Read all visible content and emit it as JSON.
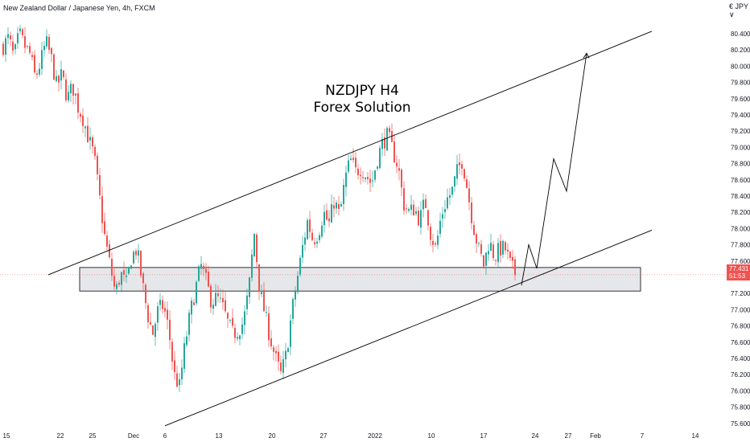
{
  "header": {
    "instrument": "New Zealand Dollar / Japanese Yen, 4h, FXCM",
    "currency_label": "€ JPY ∨"
  },
  "colors": {
    "up": "#26a69a",
    "down": "#ef5350",
    "trendline": "#000000",
    "zone_fill": "#e6e7ea",
    "zone_border": "#000000"
  },
  "price_badge": {
    "price": "77.431",
    "countdown": "51:53"
  },
  "chart_data": {
    "type": "candlestick",
    "annotations": [
      "NZDJPY H4",
      "Forex Solution"
    ],
    "y_ticks": [
      "80.400",
      "80.200",
      "80.000",
      "79.800",
      "79.600",
      "79.400",
      "79.200",
      "79.000",
      "78.800",
      "78.600",
      "78.400",
      "78.200",
      "78.000",
      "77.800",
      "77.600",
      "77.200",
      "77.000",
      "76.800",
      "76.600",
      "76.400",
      "76.200",
      "76.000",
      "75.800",
      "75.600"
    ],
    "x_ticks": [
      "15",
      "22",
      "25",
      "Dec",
      "6",
      "13",
      "20",
      "27",
      "2022",
      "10",
      "17",
      "24",
      "27",
      "Feb",
      "7",
      "14"
    ],
    "ylim": [
      75.5,
      80.6
    ],
    "current_price": 77.431,
    "support_zone": [
      77.23,
      77.52
    ],
    "channel_upper": [
      {
        "x": "Nov 24",
        "y": 77.43
      },
      {
        "x": "Feb 3",
        "y": 80.43
      }
    ],
    "channel_lower": [
      {
        "x": "Dec 6",
        "y": 75.57
      },
      {
        "x": "Feb 3",
        "y": 77.98
      }
    ],
    "projected_path": [
      77.3,
      77.8,
      77.51,
      78.86,
      78.46,
      80.16
    ],
    "price_path": [
      80.25,
      80.35,
      80.1,
      80.4,
      80.25,
      80.15,
      79.85,
      80.05,
      80.3,
      80.1,
      79.75,
      79.9,
      79.6,
      79.75,
      79.5,
      79.35,
      79.1,
      78.9,
      78.4,
      77.9,
      77.55,
      77.2,
      77.45,
      77.3,
      77.65,
      77.75,
      77.35,
      76.95,
      76.7,
      77.0,
      77.05,
      76.75,
      76.2,
      76.05,
      76.55,
      76.95,
      77.25,
      77.55,
      77.35,
      77.1,
      77.15,
      77.05,
      76.85,
      76.7,
      76.75,
      76.85,
      77.25,
      77.95,
      77.25,
      76.95,
      76.65,
      76.4,
      76.2,
      76.45,
      76.95,
      77.35,
      77.75,
      78.1,
      77.85,
      77.95,
      78.2,
      78.05,
      78.35,
      78.15,
      78.6,
      78.85,
      78.7,
      78.75,
      78.65,
      78.55,
      78.85,
      79.05,
      79.15,
      78.95,
      78.75,
      78.3,
      78.2,
      78.25,
      78.1,
      78.35,
      77.95,
      77.75,
      78.15,
      78.35,
      78.45,
      78.7,
      78.85,
      78.45,
      78.05,
      77.75,
      77.55,
      77.85,
      77.65,
      77.75,
      77.75,
      77.55,
      77.43
    ]
  }
}
